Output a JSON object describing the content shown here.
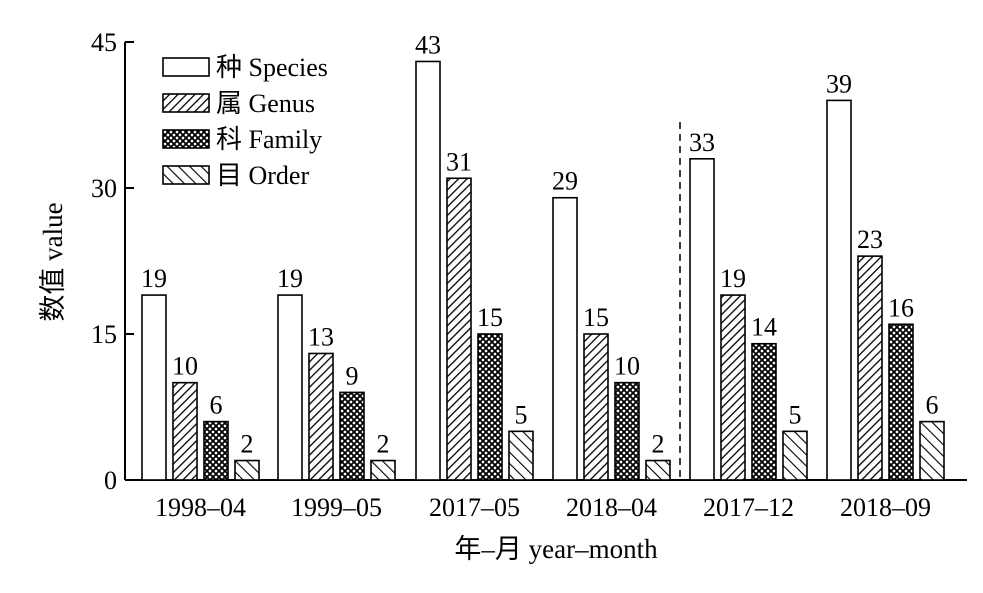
{
  "chart_data": {
    "type": "bar",
    "categories": [
      "1998‒04",
      "1999‒05",
      "2017‒05",
      "2018‒04",
      "2017‒12",
      "2018‒09"
    ],
    "series": [
      {
        "name": "种 Species",
        "values": [
          19,
          19,
          43,
          29,
          33,
          39
        ],
        "pattern": "none"
      },
      {
        "name": "属 Genus",
        "values": [
          10,
          13,
          31,
          15,
          19,
          23
        ],
        "pattern": "diagonal-dense"
      },
      {
        "name": "科 Family",
        "values": [
          6,
          9,
          15,
          10,
          14,
          16
        ],
        "pattern": "crosshatch"
      },
      {
        "name": "目 Order",
        "values": [
          2,
          2,
          5,
          2,
          5,
          6
        ],
        "pattern": "diagonal-wide"
      }
    ],
    "xlabel": "年‒月 year‒month",
    "ylabel": "数值 value",
    "ylim": [
      0,
      45
    ],
    "yticks": [
      0,
      15,
      30,
      45
    ],
    "grid": false,
    "legend_position": "top-left",
    "divider_after_category": 3,
    "colors": {
      "axis": "#000000",
      "bar_fill": "#ffffff",
      "hatch": "#000000"
    }
  }
}
